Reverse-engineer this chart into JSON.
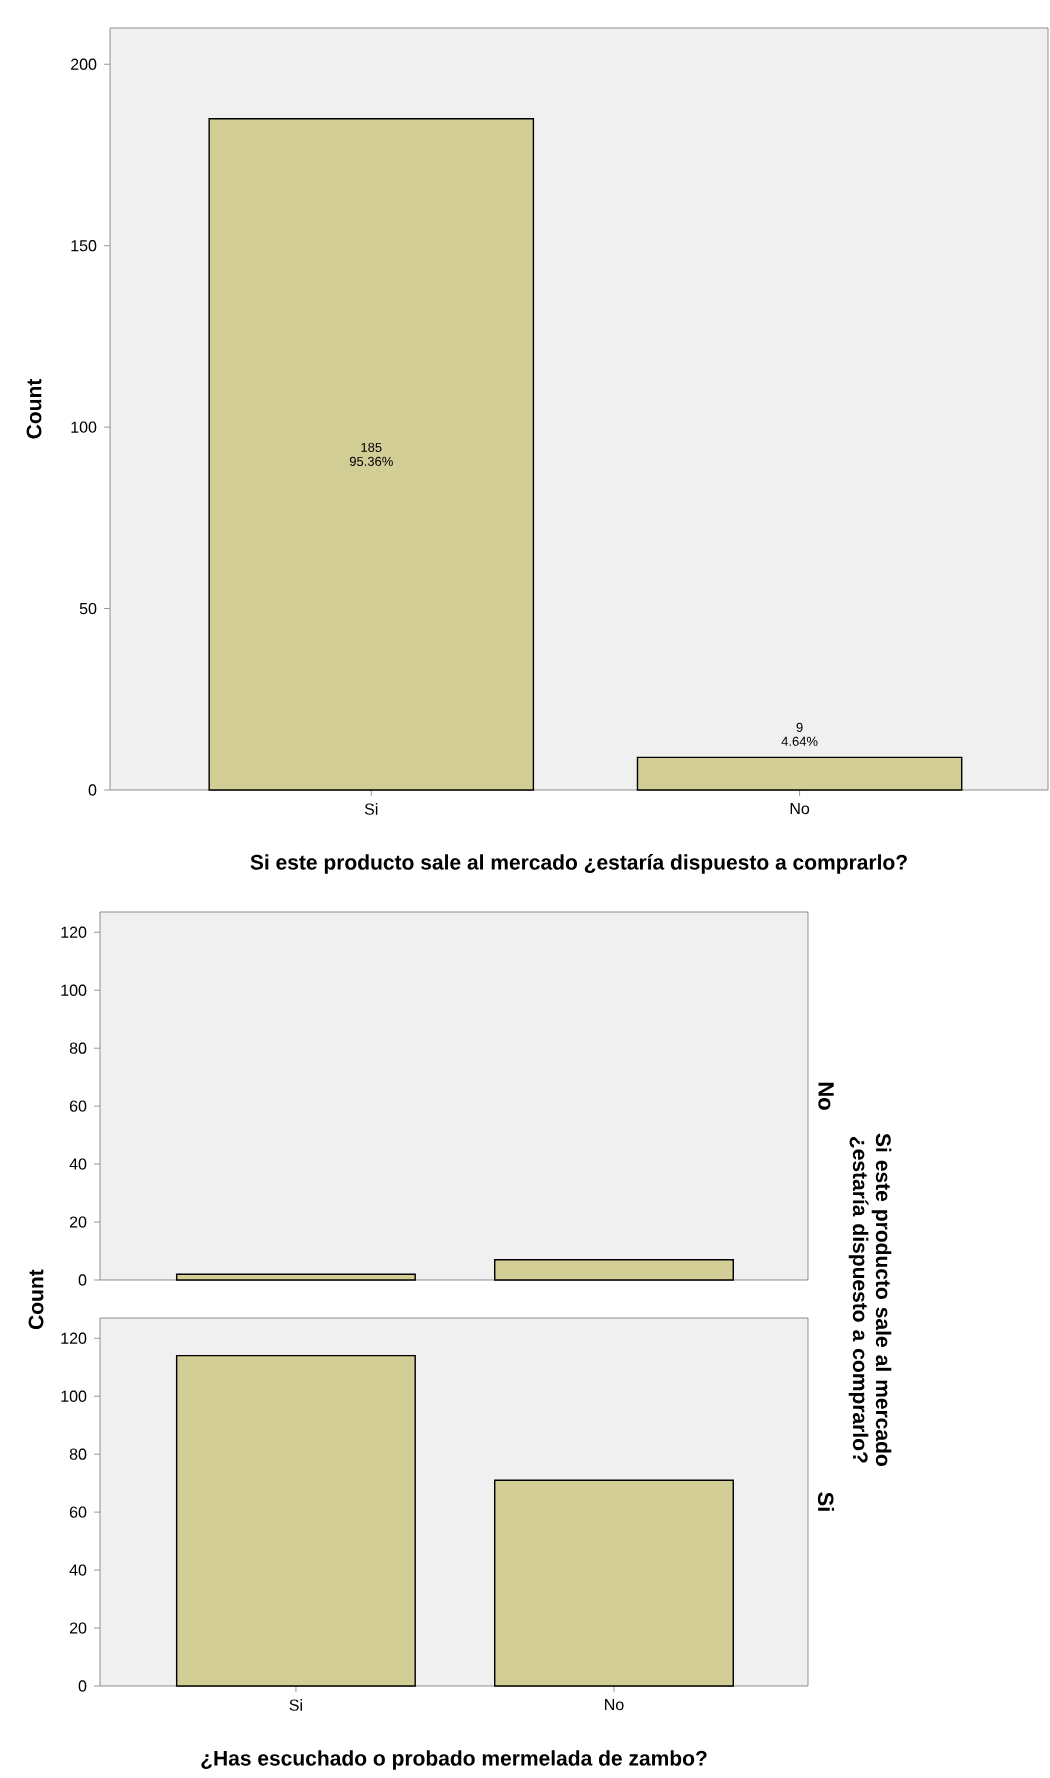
{
  "chart_data": [
    {
      "type": "bar",
      "categories": [
        "Si",
        "No"
      ],
      "values": [
        185,
        9
      ],
      "value_labels": [
        "185 95.36%",
        "9 4.64%"
      ],
      "color": "#d3cd96",
      "xlabel": "Si este producto sale al mercado ¿estaría dispuesto a comprarlo?",
      "ylabel": "Count",
      "ylim": [
        0,
        210
      ],
      "yticks": [
        0,
        50,
        100,
        150,
        200
      ]
    },
    {
      "type": "bar",
      "title": "No",
      "categories": [
        null,
        null
      ],
      "values": [
        2,
        7
      ],
      "color": "#d3cd96",
      "y2label": "Si este producto sale al mercado ¿estaría dispuesto a comprarlo?",
      "ylim": [
        0,
        127
      ],
      "yticks": [
        0,
        20,
        40,
        60,
        80,
        100,
        120
      ],
      "tick_labels": "y"
    },
    {
      "type": "bar",
      "title": "Si",
      "categories": [
        "Si",
        "No"
      ],
      "values": [
        114,
        71
      ],
      "color": "#d3cd96",
      "xlabel": "¿Has escuchado o probado mermelada de zambo?",
      "ylabel": "Count",
      "ylim": [
        0,
        127
      ],
      "yticks": [
        0,
        20,
        40,
        60,
        80,
        100,
        120
      ]
    }
  ]
}
